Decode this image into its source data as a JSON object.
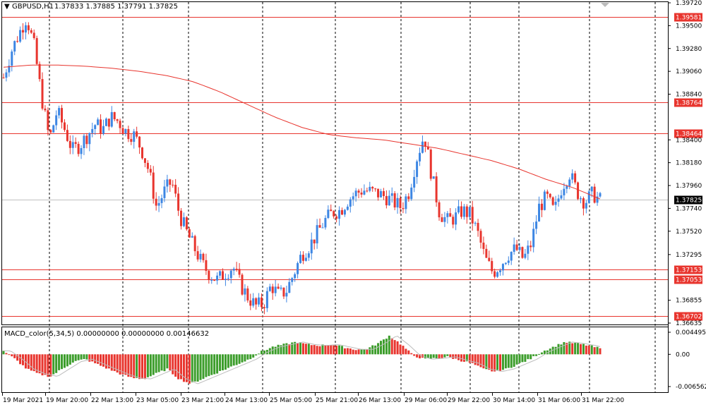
{
  "header": {
    "arrow": "▼",
    "symbol": "GBPUSD,H1",
    "ohlc": "1.37833 1.37885 1.37791 1.37825"
  },
  "macd_header": "MACD_color(5,34,5) 0.00000000 0.00000000 0.00146632",
  "price_axis": {
    "min": 1.36635,
    "max": 1.3972,
    "ticks": [
      "1.39720",
      "1.39500",
      "1.39280",
      "1.39060",
      "1.38840",
      "1.38400",
      "1.38180",
      "1.37960",
      "1.37740",
      "1.37520",
      "1.37295",
      "1.36855",
      "1.36635"
    ]
  },
  "levels": [
    {
      "value": 1.39581,
      "label": "1.39581"
    },
    {
      "value": 1.38764,
      "label": "1.38764"
    },
    {
      "value": 1.38464,
      "label": "1.38464"
    },
    {
      "value": 1.37153,
      "label": "1.37153"
    },
    {
      "value": 1.37053,
      "label": "1.37053"
    },
    {
      "value": 1.36702,
      "label": "1.36702"
    }
  ],
  "current_price": {
    "value": 1.37825,
    "label": "1.37825"
  },
  "macd_axis": {
    "ticks": [
      "0.004495",
      "0.00",
      "-0.006562"
    ],
    "max": 0.004495,
    "min": -0.006562
  },
  "time_labels": [
    "19 Mar 2021",
    "19 Mar 20:00",
    "22 Mar 13:00",
    "23 Mar 05:00",
    "23 Mar 21:00",
    "24 Mar 13:00",
    "25 Mar 05:00",
    "25 Mar 21:00",
    "26 Mar 13:00",
    "29 Mar 06:00",
    "29 Mar 22:00",
    "30 Mar 14:00",
    "31 Mar 06:00",
    "31 Mar 22:00"
  ],
  "colors": {
    "bull": "#3d86e3",
    "bear": "#e8352e",
    "level": "#e8352e",
    "ma": "#e8352e",
    "macd_pos": "#3c9d2b",
    "macd_neg": "#e8352e",
    "grid": "#000000"
  },
  "chart_data": {
    "type": "candlestick",
    "close_path": [
      1.39,
      1.3925,
      1.3942,
      1.3958,
      1.393,
      1.388,
      1.384,
      1.3868,
      1.385,
      1.383,
      1.3835,
      1.3845,
      1.3855,
      1.385,
      1.3862,
      1.3858,
      1.3848,
      1.3845,
      1.3832,
      1.381,
      1.3775,
      1.379,
      1.38,
      1.3768,
      1.375,
      1.3735,
      1.372,
      1.371,
      1.3705,
      1.3712,
      1.3718,
      1.37,
      1.3688,
      1.368,
      1.3682,
      1.37,
      1.369,
      1.3695,
      1.3712,
      1.373,
      1.3738,
      1.375,
      1.3762,
      1.377,
      1.3772,
      1.3782,
      1.3788,
      1.3792,
      1.379,
      1.3788,
      1.3785,
      1.378,
      1.3775,
      1.379,
      1.3822,
      1.3845,
      1.3805,
      1.377,
      1.3762,
      1.3765,
      1.3772,
      1.3768,
      1.375,
      1.3725,
      1.3712,
      1.372,
      1.373,
      1.3735,
      1.3725,
      1.374,
      1.3775,
      1.3785,
      1.377,
      1.3795,
      1.3808,
      1.379,
      1.378,
      1.3788,
      1.3782
    ],
    "ma_path": [
      1.391,
      1.3912,
      1.3912,
      1.3911,
      1.3909,
      1.3906,
      1.3902,
      1.3896,
      1.3886,
      1.3874,
      1.3862,
      1.3852,
      1.3845,
      1.3842,
      1.384,
      1.3836,
      1.3832,
      1.3826,
      1.382,
      1.3812,
      1.3802,
      1.3794,
      1.3783
    ],
    "macd_path": [
      0.0007,
      -0.001,
      -0.003,
      -0.004,
      -0.0045,
      -0.003,
      -0.0015,
      -0.001,
      -0.002,
      -0.003,
      -0.004,
      -0.0048,
      -0.005,
      -0.004,
      -0.003,
      -0.005,
      -0.006,
      -0.005,
      -0.004,
      -0.003,
      -0.002,
      -0.001,
      0.0005,
      0.0015,
      0.002,
      0.0025,
      0.002,
      0.0018,
      0.002,
      0.0015,
      0.001,
      0.001,
      0.0022,
      0.0038,
      0.002,
      -0.0002,
      -0.001,
      -0.0008,
      -0.0005,
      -0.0012,
      -0.0018,
      -0.003,
      -0.0035,
      -0.003,
      -0.002,
      -0.001,
      0.0005,
      0.0015,
      0.0025,
      0.0022,
      0.0018,
      0.0012
    ]
  }
}
